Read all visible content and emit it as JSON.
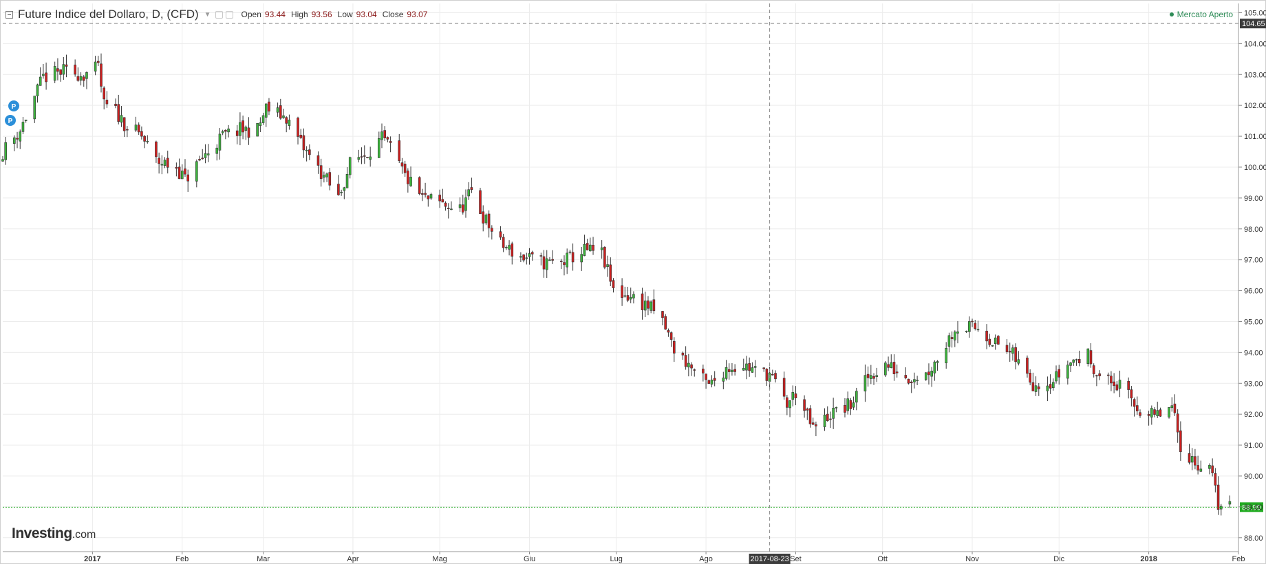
{
  "header": {
    "title": "Future Indice del Dollaro, D, (CFD)",
    "open_label": "Open",
    "open_value": "93.44",
    "high_label": "High",
    "high_value": "93.56",
    "low_label": "Low",
    "low_value": "93.04",
    "close_label": "Close",
    "close_value": "93.07"
  },
  "market_status": "Mercato Aperto",
  "logo": {
    "main": "Investing",
    "suffix": ".com"
  },
  "markers": [
    "P",
    "P"
  ],
  "crosshair_date_label": "2017-08-23",
  "dashed_level_label": "104.65",
  "last_price_label": "88.99",
  "colors": {
    "up": "#3cb43c",
    "down": "#cc1f1f",
    "grid": "#ececec",
    "marker": "#2b8fd9",
    "last_price": "#22aa22"
  },
  "chart_data": {
    "type": "candlestick",
    "y_range": [
      87.55,
      105.3
    ],
    "y_ticks": [
      "88.00",
      "89.00",
      "90.00",
      "91.00",
      "92.00",
      "93.00",
      "94.00",
      "95.00",
      "96.00",
      "97.00",
      "98.00",
      "99.00",
      "100.00",
      "101.00",
      "102.00",
      "103.00",
      "104.00",
      "105.00"
    ],
    "x_ticks": [
      {
        "label": "2017",
        "date": "2017-01-01",
        "bold": true
      },
      {
        "label": "Feb",
        "date": "2017-02-01"
      },
      {
        "label": "Mar",
        "date": "2017-03-01"
      },
      {
        "label": "Apr",
        "date": "2017-04-01"
      },
      {
        "label": "Mag",
        "date": "2017-05-01"
      },
      {
        "label": "Giu",
        "date": "2017-06-01"
      },
      {
        "label": "Lug",
        "date": "2017-07-01"
      },
      {
        "label": "Ago",
        "date": "2017-08-01"
      },
      {
        "label": "Set",
        "date": "2017-09-01"
      },
      {
        "label": "Ott",
        "date": "2017-10-01"
      },
      {
        "label": "Nov",
        "date": "2017-11-01"
      },
      {
        "label": "Dic",
        "date": "2017-12-01"
      },
      {
        "label": "2018",
        "date": "2018-01-01",
        "bold": true
      },
      {
        "label": "Feb",
        "date": "2018-02-01"
      }
    ],
    "x_range": [
      "2016-12-01",
      "2018-02-01"
    ],
    "dashed_level": 104.65,
    "last_price": 88.99,
    "crosshair_date": "2017-08-23",
    "anchors": [
      [
        "2016-12-01",
        100.5
      ],
      [
        "2016-12-07",
        101.2
      ],
      [
        "2016-12-15",
        102.9
      ],
      [
        "2016-12-22",
        103.1
      ],
      [
        "2016-12-29",
        103.0
      ],
      [
        "2017-01-03",
        103.2
      ],
      [
        "2017-01-05",
        102.0
      ],
      [
        "2017-01-09",
        101.8
      ],
      [
        "2017-01-13",
        101.3
      ],
      [
        "2017-01-18",
        101.0
      ],
      [
        "2017-01-23",
        100.2
      ],
      [
        "2017-01-30",
        100.0
      ],
      [
        "2017-02-02",
        99.6
      ],
      [
        "2017-02-09",
        100.4
      ],
      [
        "2017-02-15",
        101.0
      ],
      [
        "2017-02-21",
        101.2
      ],
      [
        "2017-02-27",
        101.2
      ],
      [
        "2017-03-02",
        101.9
      ],
      [
        "2017-03-09",
        101.6
      ],
      [
        "2017-03-15",
        100.6
      ],
      [
        "2017-03-22",
        99.7
      ],
      [
        "2017-03-27",
        99.0
      ],
      [
        "2017-03-31",
        100.1
      ],
      [
        "2017-04-06",
        100.5
      ],
      [
        "2017-04-11",
        100.9
      ],
      [
        "2017-04-14",
        100.6
      ],
      [
        "2017-04-19",
        99.7
      ],
      [
        "2017-04-25",
        99.0
      ],
      [
        "2017-05-02",
        98.8
      ],
      [
        "2017-05-08",
        98.6
      ],
      [
        "2017-05-12",
        99.2
      ],
      [
        "2017-05-16",
        98.4
      ],
      [
        "2017-05-22",
        97.5
      ],
      [
        "2017-05-29",
        97.1
      ],
      [
        "2017-06-06",
        96.9
      ],
      [
        "2017-06-12",
        96.9
      ],
      [
        "2017-06-20",
        97.3
      ],
      [
        "2017-06-26",
        97.2
      ],
      [
        "2017-06-30",
        96.0
      ],
      [
        "2017-07-06",
        95.8
      ],
      [
        "2017-07-12",
        95.5
      ],
      [
        "2017-07-17",
        95.0
      ],
      [
        "2017-07-21",
        94.1
      ],
      [
        "2017-07-27",
        93.5
      ],
      [
        "2017-08-02",
        92.9
      ],
      [
        "2017-08-08",
        93.5
      ],
      [
        "2017-08-14",
        93.6
      ],
      [
        "2017-08-18",
        93.4
      ],
      [
        "2017-08-23",
        93.3
      ],
      [
        "2017-08-29",
        92.3
      ],
      [
        "2017-09-01",
        92.7
      ],
      [
        "2017-09-07",
        91.5
      ],
      [
        "2017-09-13",
        92.0
      ],
      [
        "2017-09-20",
        92.3
      ],
      [
        "2017-09-26",
        93.2
      ],
      [
        "2017-10-02",
        93.6
      ],
      [
        "2017-10-10",
        93.2
      ],
      [
        "2017-10-16",
        93.3
      ],
      [
        "2017-10-20",
        93.8
      ],
      [
        "2017-10-26",
        94.8
      ],
      [
        "2017-11-03",
        94.8
      ],
      [
        "2017-11-09",
        94.3
      ],
      [
        "2017-11-15",
        93.9
      ],
      [
        "2017-11-22",
        93.0
      ],
      [
        "2017-11-29",
        93.1
      ],
      [
        "2017-12-05",
        93.7
      ],
      [
        "2017-12-11",
        93.9
      ],
      [
        "2017-12-15",
        93.2
      ],
      [
        "2017-12-22",
        92.9
      ],
      [
        "2017-12-28",
        92.2
      ],
      [
        "2018-01-03",
        91.9
      ],
      [
        "2018-01-09",
        92.2
      ],
      [
        "2018-01-12",
        91.0
      ],
      [
        "2018-01-17",
        90.4
      ],
      [
        "2018-01-22",
        90.3
      ],
      [
        "2018-01-25",
        89.1
      ],
      [
        "2018-01-29",
        89.0
      ]
    ]
  }
}
